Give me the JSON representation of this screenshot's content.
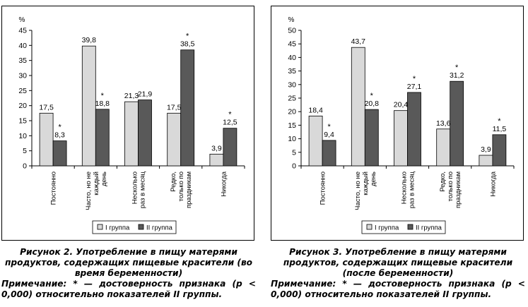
{
  "charts": [
    {
      "caption": "Рисунок 2. Употребление в пищу матерями продуктов, содержащих пищевые красители (во время беременности)",
      "note": "Примечание: * — достоверность признака (р < 0,000) относительно показателей II группы.",
      "chart_data": {
        "type": "bar",
        "ylabel": "%",
        "ylim": [
          0,
          45
        ],
        "yticks": [
          0,
          5,
          10,
          15,
          20,
          25,
          30,
          35,
          40,
          45
        ],
        "categories": [
          [
            "Постоянно"
          ],
          [
            "Часто, но не",
            "каждый",
            "день"
          ],
          [
            "Несколько",
            "раз в месяц"
          ],
          [
            "Редко,",
            "только по",
            "праздникам"
          ],
          [
            "Никогда"
          ]
        ],
        "series": [
          {
            "name": "I группа",
            "color": "#d9d9d9",
            "values": [
              17.5,
              39.8,
              21.3,
              17.5,
              3.9
            ],
            "labels": [
              "17,5",
              "39,8",
              "21,3",
              "17,5",
              "3,9"
            ]
          },
          {
            "name": "II группа",
            "color": "#595959",
            "values": [
              8.3,
              18.8,
              21.9,
              38.5,
              12.5
            ],
            "labels": [
              "8,3",
              "18,8",
              "21,9",
              "38,5",
              "12,5"
            ]
          }
        ],
        "significance_marks": [
          "*",
          "*",
          "*",
          "*"
        ],
        "significance_categories": [
          0,
          1,
          3,
          4
        ],
        "legend": "bottom",
        "grid": false
      }
    },
    {
      "caption": "Рисунок 3. Употребление в пищу матерями продуктов, содержащих пищевые красители (после беременности)",
      "note": "Примечание: * — достоверность признака (р < 0,000) относительно показателей II группы.",
      "chart_data": {
        "type": "bar",
        "ylabel": "%",
        "ylim": [
          0,
          50
        ],
        "yticks": [
          0,
          5,
          10,
          15,
          20,
          25,
          30,
          35,
          40,
          45,
          50
        ],
        "categories": [
          [
            "Постоянно"
          ],
          [
            "Часто, но не",
            "каждый",
            "день"
          ],
          [
            "Несколько",
            "раз в месяц"
          ],
          [
            "Редко,",
            "только по",
            "праздникам"
          ],
          [
            "Никогда"
          ]
        ],
        "series": [
          {
            "name": "I группа",
            "color": "#d9d9d9",
            "values": [
              18.4,
              43.7,
              20.4,
              13.6,
              3.9
            ],
            "labels": [
              "18,4",
              "43,7",
              "20,4",
              "13,6",
              "3,9"
            ]
          },
          {
            "name": "II группа",
            "color": "#595959",
            "values": [
              9.4,
              20.8,
              27.1,
              31.2,
              11.5
            ],
            "labels": [
              "9,4",
              "20,8",
              "27,1",
              "31,2",
              "11,5"
            ]
          }
        ],
        "significance_marks": [
          "*",
          "*",
          "*",
          "*",
          "*"
        ],
        "significance_categories": [
          0,
          1,
          2,
          3,
          4
        ],
        "legend": "bottom",
        "grid": false
      }
    }
  ]
}
